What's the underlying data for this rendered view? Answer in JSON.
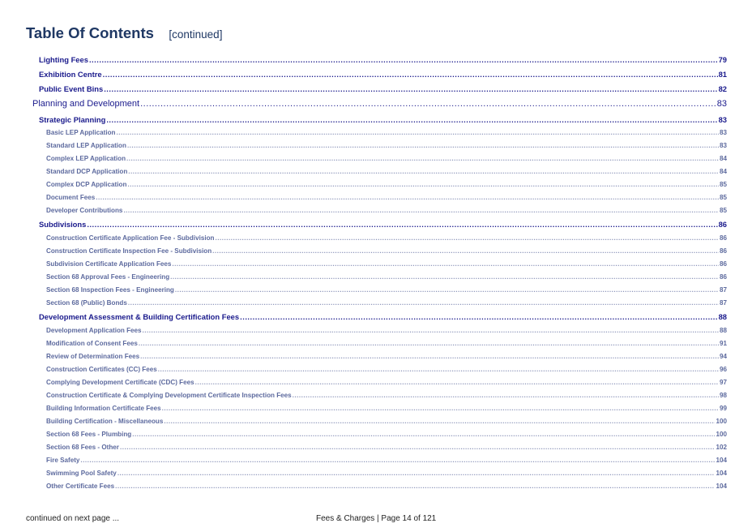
{
  "header": {
    "title": "Table Of Contents",
    "subtitle": "[continued]"
  },
  "entries": [
    {
      "level": 2,
      "label": "Lighting Fees",
      "page": "79"
    },
    {
      "level": 2,
      "label": "Exhibition Centre",
      "page": "81"
    },
    {
      "level": 2,
      "label": "Public Event Bins",
      "page": "82"
    },
    {
      "level": 1,
      "label": "Planning and Development",
      "page": "83"
    },
    {
      "level": 2,
      "label": "Strategic Planning",
      "page": "83"
    },
    {
      "level": 3,
      "label": "Basic LEP Application",
      "page": "83"
    },
    {
      "level": 3,
      "label": "Standard LEP Application",
      "page": "83"
    },
    {
      "level": 3,
      "label": "Complex LEP Application",
      "page": "84"
    },
    {
      "level": 3,
      "label": "Standard DCP Application",
      "page": "84"
    },
    {
      "level": 3,
      "label": "Complex DCP Application",
      "page": "85"
    },
    {
      "level": 3,
      "label": "Document Fees",
      "page": "85"
    },
    {
      "level": 3,
      "label": "Developer Contributions",
      "page": "85"
    },
    {
      "level": 2,
      "label": "Subdivisions",
      "page": "86"
    },
    {
      "level": 3,
      "label": "Construction Certificate Application Fee - Subdivision",
      "page": "86"
    },
    {
      "level": 3,
      "label": "Construction Certificate Inspection Fee - Subdivision",
      "page": "86"
    },
    {
      "level": 3,
      "label": "Subdivision Certificate Application Fees",
      "page": "86"
    },
    {
      "level": 3,
      "label": "Section 68 Approval Fees - Engineering",
      "page": "86"
    },
    {
      "level": 3,
      "label": "Section 68 Inspection Fees - Engineering",
      "page": "87"
    },
    {
      "level": 3,
      "label": "Section 68 (Public) Bonds",
      "page": "87"
    },
    {
      "level": 2,
      "label": "Development Assessment & Building Certification Fees",
      "page": "88"
    },
    {
      "level": 3,
      "label": "Development Application Fees",
      "page": "88"
    },
    {
      "level": 3,
      "label": "Modification of Consent Fees",
      "page": "91"
    },
    {
      "level": 3,
      "label": "Review of Determination Fees",
      "page": "94"
    },
    {
      "level": 3,
      "label": "Construction Certificates (CC) Fees",
      "page": "96"
    },
    {
      "level": 3,
      "label": "Complying Development Certificate (CDC) Fees",
      "page": "97"
    },
    {
      "level": 3,
      "label": "Construction Certificate & Complying Development Certificate Inspection Fees",
      "page": "98"
    },
    {
      "level": 3,
      "label": "Building Information Certificate Fees",
      "page": "99"
    },
    {
      "level": 3,
      "label": "Building Certification - Miscellaneous",
      "page": "100"
    },
    {
      "level": 3,
      "label": "Section 68 Fees - Plumbing",
      "page": "100"
    },
    {
      "level": 3,
      "label": "Section 68 Fees - Other",
      "page": "102"
    },
    {
      "level": 3,
      "label": "Fire Safety",
      "page": "104"
    },
    {
      "level": 3,
      "label": "Swimming Pool Safety",
      "page": "104"
    },
    {
      "level": 3,
      "label": "Other Certificate Fees",
      "page": "104"
    }
  ],
  "footer": {
    "continued": "continued on next page ...",
    "page_info": "Fees & Charges | Page 14 of 121"
  },
  "colors": {
    "heading": "#1f3864",
    "level1": "#1a1a8c",
    "level2": "#1a1a8c",
    "level3": "#5d6a9e"
  }
}
